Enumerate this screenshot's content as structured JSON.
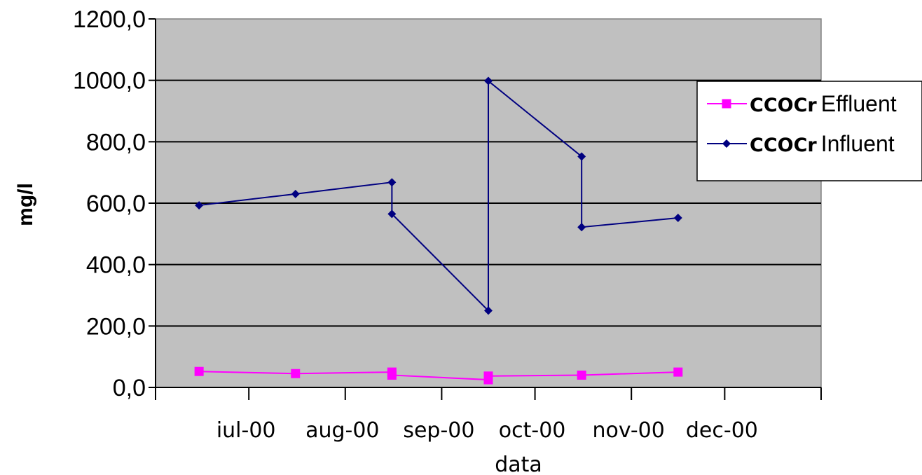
{
  "chart_data": {
    "type": "line",
    "xlabel": "data",
    "ylabel": "mg/l",
    "ylim": [
      0,
      1200
    ],
    "y_ticks": [
      0,
      200,
      400,
      600,
      800,
      1000,
      1200
    ],
    "y_tick_labels": [
      "0,0",
      "200,0",
      "400,0",
      "600,0",
      "800,0",
      "1000,0",
      "1200,0"
    ],
    "x_ticks": [
      "2000-07-01",
      "2000-08-01",
      "2000-09-01",
      "2000-10-01",
      "2000-11-01",
      "2000-12-01"
    ],
    "x_tick_labels": [
      "iul-00",
      "aug-00",
      "sep-00",
      "oct-00",
      "nov-00",
      "dec-00"
    ],
    "x_range": [
      "2000-06-01",
      "2001-01-01"
    ],
    "grid": true,
    "legend_position": "top-right",
    "background_color": "#c0c0c0",
    "series": [
      {
        "name_bold": "CCOCr",
        "name_rest": "Effluent",
        "color": "#ff00ff",
        "marker": "square",
        "x": [
          "2000-06-15",
          "2000-07-16",
          "2000-08-16",
          "2000-08-16",
          "2000-09-16",
          "2000-09-16",
          "2000-10-16",
          "2000-11-16"
        ],
        "y": [
          52,
          45,
          50,
          40,
          25,
          37,
          40,
          50
        ]
      },
      {
        "name_bold": "CCOCr",
        "name_rest": "Influent",
        "color": "#000080",
        "marker": "diamond",
        "x": [
          "2000-06-15",
          "2000-07-16",
          "2000-08-16",
          "2000-08-16",
          "2000-09-16",
          "2000-09-16",
          "2000-10-16",
          "2000-10-16",
          "2000-11-16"
        ],
        "y": [
          593,
          630,
          668,
          565,
          250,
          998,
          752,
          522,
          552
        ]
      }
    ]
  }
}
